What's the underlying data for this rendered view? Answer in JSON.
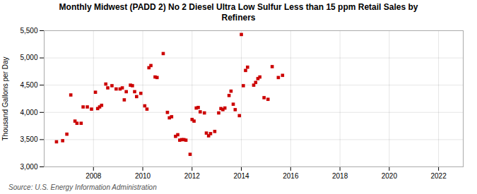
{
  "chart_data": {
    "type": "scatter",
    "title": "Monthly Midwest (PADD 2) No 2 Diesel Ultra Low Sulfur Less than 15 ppm Retail Sales by\nRefiners",
    "ylabel": "Thousand Gallons per Day",
    "caption": "Source: U.S. Energy Information Administration",
    "color": "#cc0000",
    "marker": "square",
    "grid": true,
    "xlim": [
      2006.0,
      2023.0
    ],
    "ylim": [
      3000,
      5500
    ],
    "xticks": [
      2008,
      2010,
      2012,
      2014,
      2016,
      2018,
      2020,
      2022
    ],
    "yticks": [
      {
        "value": 3000,
        "label": "3,000"
      },
      {
        "value": 3500,
        "label": "3,500"
      },
      {
        "value": 4000,
        "label": "4,000"
      },
      {
        "value": 4500,
        "label": "4,500"
      },
      {
        "value": 5000,
        "label": "5,000"
      },
      {
        "value": 5500,
        "label": "5,500"
      }
    ],
    "x": [
      2006.5,
      2006.75,
      2006.92,
      2007.08,
      2007.25,
      2007.33,
      2007.5,
      2007.58,
      2007.75,
      2007.92,
      2008.08,
      2008.17,
      2008.25,
      2008.33,
      2008.5,
      2008.58,
      2008.75,
      2008.92,
      2009.08,
      2009.17,
      2009.25,
      2009.33,
      2009.5,
      2009.58,
      2009.67,
      2009.75,
      2009.92,
      2010.08,
      2010.17,
      2010.25,
      2010.33,
      2010.5,
      2010.58,
      2010.83,
      2011.0,
      2011.08,
      2011.17,
      2011.33,
      2011.42,
      2011.5,
      2011.58,
      2011.67,
      2011.75,
      2011.92,
      2012.0,
      2012.08,
      2012.17,
      2012.25,
      2012.33,
      2012.5,
      2012.58,
      2012.67,
      2012.75,
      2012.92,
      2013.08,
      2013.17,
      2013.25,
      2013.33,
      2013.5,
      2013.58,
      2013.67,
      2013.75,
      2013.92,
      2014.0,
      2014.08,
      2014.17,
      2014.25,
      2014.5,
      2014.58,
      2014.67,
      2014.75,
      2014.92,
      2015.08,
      2015.25,
      2015.5,
      2015.67
    ],
    "values": [
      3460,
      3480,
      3600,
      4320,
      3840,
      3800,
      3800,
      4100,
      4100,
      4060,
      4370,
      4070,
      4100,
      4130,
      4520,
      4450,
      4490,
      4430,
      4430,
      4450,
      4230,
      4380,
      4500,
      4490,
      4380,
      4290,
      4350,
      4120,
      4060,
      4820,
      4860,
      4650,
      4640,
      5080,
      4000,
      3900,
      3920,
      3560,
      3590,
      3490,
      3500,
      3500,
      3490,
      3230,
      3870,
      3840,
      4080,
      4090,
      4010,
      3990,
      3620,
      3570,
      3610,
      3650,
      3990,
      4070,
      4050,
      4080,
      4310,
      4390,
      4150,
      4050,
      3940,
      5430,
      4490,
      4770,
      4830,
      4500,
      4550,
      4620,
      4650,
      4270,
      4240,
      4840,
      4640,
      4680
    ]
  }
}
